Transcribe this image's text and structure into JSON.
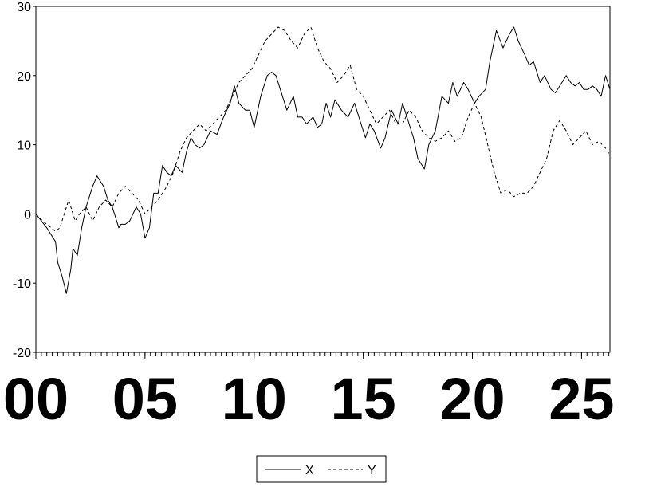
{
  "chart_data": {
    "type": "line",
    "title": "",
    "xlabel": "",
    "ylabel": "",
    "xlim": [
      0,
      26.3
    ],
    "ylim": [
      -20,
      30
    ],
    "yticks": [
      -20,
      -10,
      0,
      10,
      20,
      30
    ],
    "xticks": [
      0,
      5,
      10,
      15,
      20,
      25
    ],
    "xtick_labels": [
      "00",
      "05",
      "10",
      "15",
      "20",
      "25"
    ],
    "grid": false,
    "legend_position": "bottom-center",
    "series": [
      {
        "name": "X",
        "style": "solid",
        "x": [
          0,
          0.5,
          0.9,
          1.0,
          1.2,
          1.4,
          1.6,
          1.7,
          1.9,
          2.1,
          2.3,
          2.6,
          2.8,
          2.9,
          3.1,
          3.3,
          3.5,
          3.6,
          3.8,
          3.9,
          4.1,
          4.3,
          4.6,
          4.8,
          5.0,
          5.2,
          5.4,
          5.6,
          5.8,
          6.0,
          6.2,
          6.4,
          6.7,
          6.9,
          7.1,
          7.3,
          7.5,
          7.7,
          8.0,
          8.3,
          8.6,
          8.9,
          9.1,
          9.3,
          9.6,
          9.8,
          10.0,
          10.3,
          10.6,
          10.8,
          11.0,
          11.2,
          11.5,
          11.8,
          12.0,
          12.2,
          12.4,
          12.7,
          12.9,
          13.1,
          13.3,
          13.5,
          13.7,
          14.0,
          14.3,
          14.6,
          14.9,
          15.1,
          15.3,
          15.5,
          15.8,
          16.0,
          16.3,
          16.6,
          16.8,
          17.0,
          17.3,
          17.5,
          17.8,
          18.0,
          18.3,
          18.6,
          18.9,
          19.1,
          19.3,
          19.6,
          19.8,
          20.1,
          20.3,
          20.6,
          20.8,
          21.1,
          21.4,
          21.7,
          21.9,
          22.1,
          22.4,
          22.6,
          22.8,
          23.1,
          23.3,
          23.6,
          23.8,
          24.1,
          24.3,
          24.5,
          24.7,
          24.9,
          25.1,
          25.3,
          25.5,
          25.7,
          25.9,
          26.1,
          26.3
        ],
        "values": [
          0,
          -2,
          -4,
          -7,
          -9,
          -11.5,
          -8,
          -5,
          -6,
          -2,
          1,
          4,
          5.5,
          5,
          4,
          2,
          1,
          0,
          -2,
          -1.5,
          -1.5,
          -1,
          1,
          0,
          -3.5,
          -2,
          3,
          3,
          7,
          6,
          5.5,
          7,
          6,
          9,
          11,
          10,
          9.5,
          10,
          12,
          11.5,
          14,
          16,
          18.5,
          16,
          15,
          15,
          12.5,
          17,
          20,
          20.5,
          20,
          18,
          15,
          17,
          14,
          14,
          13,
          14,
          12.5,
          13,
          16,
          14,
          16.5,
          15,
          14,
          16,
          13,
          11,
          13,
          12,
          9.5,
          11,
          15,
          13,
          16,
          14,
          11,
          8,
          6.5,
          10,
          12,
          17,
          16,
          19,
          17,
          19,
          18,
          16,
          17,
          18,
          22,
          26.5,
          24,
          26,
          27,
          25,
          23,
          21.5,
          22,
          19,
          20,
          18,
          17.5,
          19,
          20,
          19,
          18.5,
          19,
          18,
          18,
          18.5,
          18,
          17,
          20,
          18
        ]
      },
      {
        "name": "Y",
        "style": "dashed",
        "x": [
          0,
          0.3,
          0.5,
          0.7,
          0.9,
          1.1,
          1.3,
          1.5,
          1.8,
          2.0,
          2.3,
          2.6,
          2.9,
          3.2,
          3.5,
          3.8,
          4.1,
          4.4,
          4.7,
          5.0,
          5.3,
          5.6,
          6.0,
          6.3,
          6.6,
          6.9,
          7.2,
          7.5,
          7.8,
          8.1,
          8.4,
          8.7,
          9.0,
          9.3,
          9.6,
          9.9,
          10.2,
          10.5,
          10.8,
          11.1,
          11.4,
          11.7,
          12.0,
          12.3,
          12.6,
          12.9,
          13.2,
          13.5,
          13.8,
          14.1,
          14.4,
          14.7,
          15.0,
          15.3,
          15.6,
          15.9,
          16.2,
          16.5,
          16.8,
          17.1,
          17.4,
          17.7,
          18.0,
          18.3,
          18.6,
          18.9,
          19.2,
          19.5,
          19.8,
          20.1,
          20.4,
          20.7,
          21.0,
          21.3,
          21.6,
          21.9,
          22.2,
          22.5,
          22.8,
          23.1,
          23.4,
          23.7,
          24.0,
          24.3,
          24.6,
          24.9,
          25.2,
          25.5,
          25.8,
          26.1,
          26.3
        ],
        "values": [
          0,
          -1,
          -1.5,
          -2,
          -2.5,
          -2,
          0,
          2,
          -1,
          0,
          1,
          -1,
          1,
          2,
          1,
          3,
          4,
          3,
          2,
          0,
          1,
          2,
          4,
          6,
          9,
          11,
          12,
          13,
          12,
          13,
          14,
          15,
          17,
          19,
          20,
          21,
          23,
          25,
          26,
          27,
          26.5,
          25,
          24,
          26,
          27,
          24,
          22,
          21,
          19,
          20,
          21.5,
          18,
          17,
          15,
          13,
          14,
          15,
          13,
          13,
          15,
          14,
          12,
          11,
          10.5,
          11,
          12,
          10.5,
          11,
          14,
          16,
          14,
          10,
          6,
          3,
          3.5,
          2.5,
          3,
          3,
          4,
          6,
          8,
          12,
          13.5,
          12,
          10,
          11,
          12,
          10,
          10.5,
          9.5,
          8.5
        ]
      }
    ]
  }
}
